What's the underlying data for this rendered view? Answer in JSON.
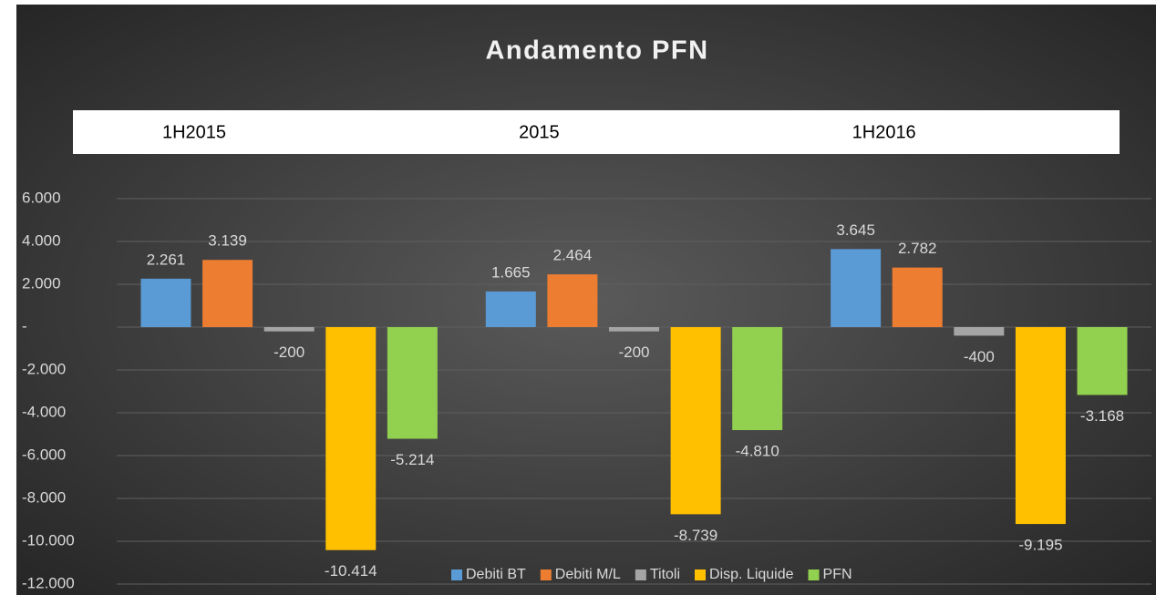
{
  "chart_data": {
    "type": "bar",
    "title": "Andamento PFN",
    "categories": [
      "1H2015",
      "2015",
      "1H2016"
    ],
    "series": [
      {
        "name": "Debiti BT",
        "color": "#5b9bd5",
        "values": [
          2261,
          1665,
          3645
        ],
        "value_labels": [
          "2.261",
          "1.665",
          "3.645"
        ]
      },
      {
        "name": "Debiti M/L",
        "color": "#ed7d31",
        "values": [
          3139,
          2464,
          2782
        ],
        "value_labels": [
          "3.139",
          "2.464",
          "2.782"
        ]
      },
      {
        "name": "Titoli",
        "color": "#a5a5a5",
        "values": [
          -200,
          -200,
          -400
        ],
        "value_labels": [
          "-200",
          "-200",
          "-400"
        ]
      },
      {
        "name": "Disp. Liquide",
        "color": "#ffc000",
        "values": [
          -10414,
          -8739,
          -9195
        ],
        "value_labels": [
          "-10.414",
          "-8.739",
          "-9.195"
        ]
      },
      {
        "name": "PFN",
        "color": "#92d050",
        "values": [
          -5214,
          -4810,
          -3168
        ],
        "value_labels": [
          "-5.214",
          "-4.810",
          "-3.168"
        ]
      }
    ],
    "ylim": [
      -12000,
      6000
    ],
    "yticks": [
      {
        "value": -12000,
        "label": "-12.000"
      },
      {
        "value": -10000,
        "label": "-10.000"
      },
      {
        "value": -8000,
        "label": "-8.000"
      },
      {
        "value": -6000,
        "label": "-6.000"
      },
      {
        "value": -4000,
        "label": "-4.000"
      },
      {
        "value": -2000,
        "label": "-2.000"
      },
      {
        "value": 0,
        "label": "-"
      },
      {
        "value": 2000,
        "label": "2.000"
      },
      {
        "value": 4000,
        "label": "4.000"
      },
      {
        "value": 6000,
        "label": "6.000"
      }
    ],
    "grid": true,
    "legend": "bottom"
  }
}
